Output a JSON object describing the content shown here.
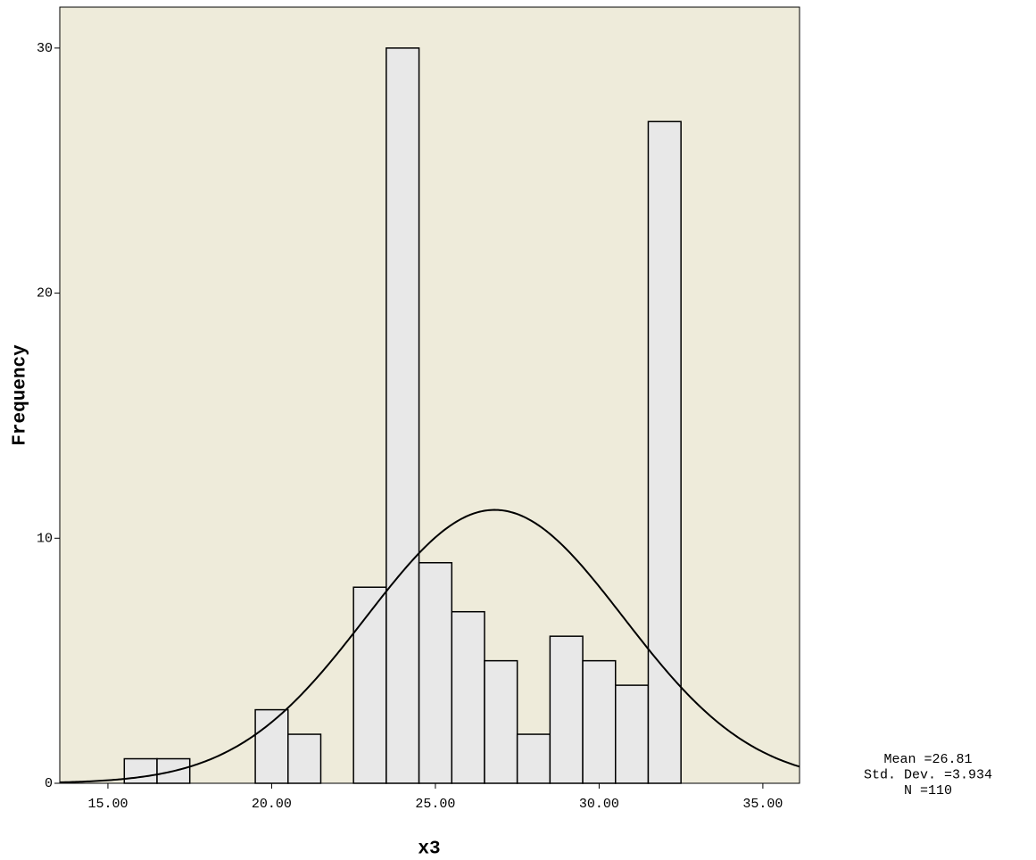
{
  "chart_data": {
    "type": "histogram",
    "x_label": "x3",
    "y_label": "Frequency",
    "bins": [
      15.5,
      16.5,
      17.5,
      18.5,
      19.5,
      20.5,
      21.5,
      22.5,
      23.5,
      24.5,
      25.5,
      26.5,
      27.5,
      28.5,
      29.5,
      30.5,
      31.5,
      32.5
    ],
    "values": [
      1,
      1,
      0,
      0,
      3,
      2,
      0,
      8,
      30,
      9,
      7,
      5,
      2,
      6,
      5,
      4,
      27
    ],
    "color": "#e8e8e8",
    "edge_color": "#000000",
    "background": "#eeebda",
    "xlim": [
      13.53,
      36.12
    ],
    "ylim": [
      0,
      31.67
    ],
    "xticks": [
      {
        "value": 15,
        "label": "15.00"
      },
      {
        "value": 20,
        "label": "20.00"
      },
      {
        "value": 25,
        "label": "25.00"
      },
      {
        "value": 30,
        "label": "30.00"
      },
      {
        "value": 35,
        "label": "35.00"
      }
    ],
    "yticks": [
      0,
      10,
      20,
      30
    ],
    "normal_curve": true,
    "stats": [
      {
        "value": 26.81,
        "label": "Mean =26.81"
      },
      {
        "value": 3.934,
        "label": "Std. Dev. =3.934"
      },
      {
        "value": 110,
        "label": "N =110"
      }
    ]
  }
}
